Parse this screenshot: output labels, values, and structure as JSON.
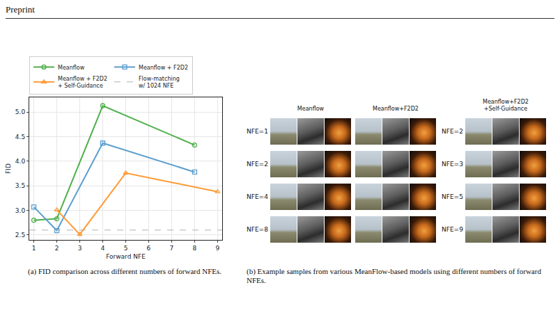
{
  "header": "Preprint",
  "chart_data": {
    "type": "line",
    "x_label": "Forward NFE",
    "y_label": "FID",
    "xlim": [
      0.8,
      9.2
    ],
    "xticks": [
      1,
      2,
      3,
      4,
      5,
      6,
      7,
      8,
      9
    ],
    "ylim": [
      2.4,
      5.3
    ],
    "yticks": [
      {
        "value": 2.5,
        "label": "2.5"
      },
      {
        "value": 3,
        "label": "3.0"
      },
      {
        "value": 3.5,
        "label": "3.5"
      },
      {
        "value": 4,
        "label": "4.0"
      },
      {
        "value": 4.5,
        "label": "4.5"
      },
      {
        "value": 5,
        "label": "5.0"
      }
    ],
    "grid": true,
    "legend": "top",
    "series": [
      {
        "name": "Meanflow",
        "color": "#4daf4a",
        "marker": "circle-open",
        "x": [
          1,
          2,
          4,
          8
        ],
        "values": [
          2.8,
          2.83,
          5.13,
          4.33
        ]
      },
      {
        "name": "Meanflow + F2D2",
        "color": "#5b9ecf",
        "marker": "square-open",
        "x": [
          1,
          2,
          4,
          8
        ],
        "values": [
          3.07,
          2.59,
          4.37,
          3.78
        ]
      },
      {
        "name": "Meanflow + F2D2 + Self-Guidance",
        "color": "#ff9a33",
        "marker": "triangle-up-open",
        "x": [
          2,
          3,
          5,
          9
        ],
        "values": [
          3.01,
          2.51,
          3.76,
          3.38
        ]
      }
    ],
    "reference_lines": [
      {
        "name": "Flow-matching w/ 1024 NFE",
        "value": 2.6,
        "color": "#b0b0b0",
        "line_style": "dashed"
      }
    ]
  },
  "samples": {
    "groups": [
      {
        "columns": [
          "Meanflow",
          "Meanflow+F2D2"
        ],
        "row_labels": [
          "NFE=1",
          "NFE=2",
          "NFE=4",
          "NFE=8"
        ]
      },
      {
        "columns": [
          "Meanflow+F2D2 +Self-Guidance"
        ],
        "row_labels": [
          "NFE=2",
          "NFE=3",
          "NFE=5",
          "NFE=9"
        ]
      }
    ]
  },
  "captions": [
    "(a) FID comparison across different numbers of forward NFEs.",
    "(b) Example samples from various MeanFlow-based models using different numbers of forward NFEs."
  ]
}
